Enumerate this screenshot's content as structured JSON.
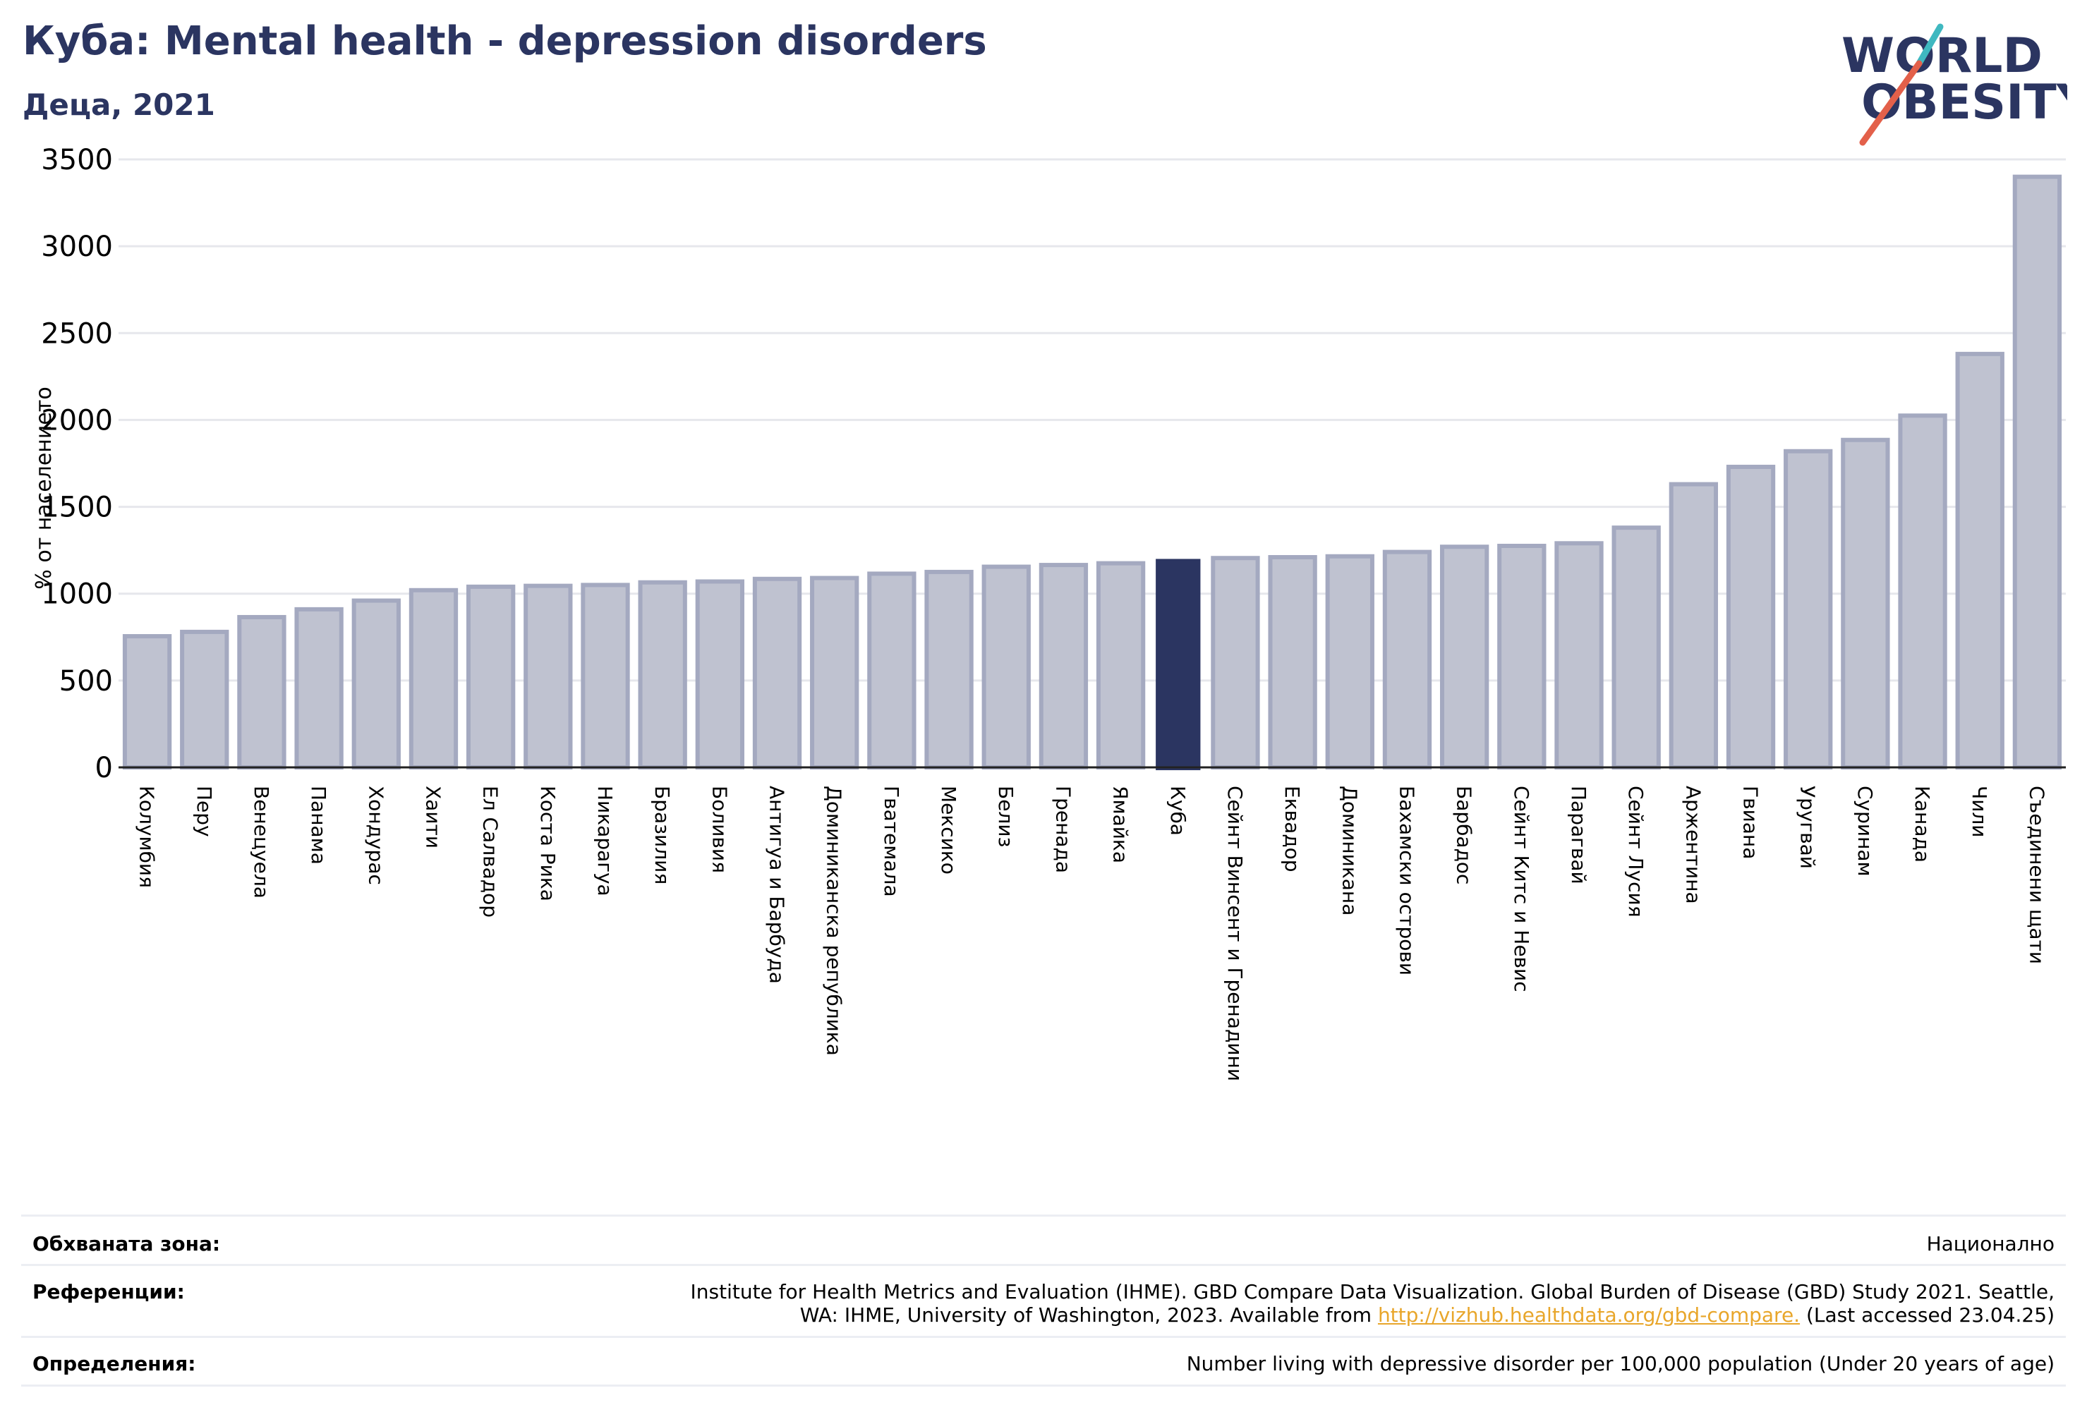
{
  "header": {
    "title": "Куба: Mental health - depression disorders",
    "subtitle": "Деца, 2021"
  },
  "logo": {
    "line1": "WORLD",
    "line2": "OBESITY"
  },
  "colors": {
    "accent": "#2b3561",
    "bar_fill": "#bfc2d0",
    "bar_stroke": "#a4a9c0",
    "logo_teal": "#3fb8c0",
    "logo_red": "#e3604a",
    "link": "#e8a62b"
  },
  "chart_data": {
    "type": "bar",
    "ylabel": "% от населението",
    "ylim": [
      0,
      3500
    ],
    "yticks": [
      0,
      500,
      1000,
      1500,
      2000,
      2500,
      3000,
      3500
    ],
    "grid": true,
    "highlight": "Куба",
    "categories": [
      "Колумбия",
      "Перу",
      "Венецуела",
      "Панама",
      "Хондурас",
      "Хаити",
      "Ел Салвадор",
      "Коста Рика",
      "Никарагуа",
      "Бразилия",
      "Боливия",
      "Антигуа и Барбуда",
      "Доминиканска република",
      "Гватемала",
      "Мексико",
      "Белиз",
      "Гренада",
      "Ямайка",
      "Куба",
      "Сейнт Винсент и Гренадини",
      "Еквадор",
      "Доминикана",
      "Бахамски острови",
      "Барбадос",
      "Сейнт Китс и Невис",
      "Парагвай",
      "Сейнт Лусия",
      "Аржентина",
      "Гвиана",
      "Уругвай",
      "Суринам",
      "Канада",
      "Чили",
      "Съединени щати"
    ],
    "values": [
      755,
      780,
      865,
      910,
      960,
      1020,
      1040,
      1045,
      1050,
      1065,
      1070,
      1085,
      1090,
      1115,
      1125,
      1155,
      1165,
      1175,
      1200,
      1205,
      1210,
      1215,
      1240,
      1270,
      1275,
      1290,
      1380,
      1630,
      1730,
      1820,
      1885,
      2025,
      2380,
      3400
    ]
  },
  "footer": {
    "coverage_label": "Обхваната зона:",
    "coverage_value": "Национално",
    "references_label": "Референции:",
    "references_line1": "Institute for Health Metrics and Evaluation (IHME). GBD Compare Data Visualization. Global Burden of Disease (GBD) Study 2021. Seattle,",
    "references_line2_pre": "WA: IHME, University of Washington, 2023. Available from ",
    "references_link": "http://vizhub.healthdata.org/gbd-compare.",
    "references_line2_post": " (Last accessed 23.04.25)",
    "definitions_label": "Определения:",
    "definitions_value": "Number living with depressive disorder per 100,000 population (Under 20 years of age)"
  }
}
